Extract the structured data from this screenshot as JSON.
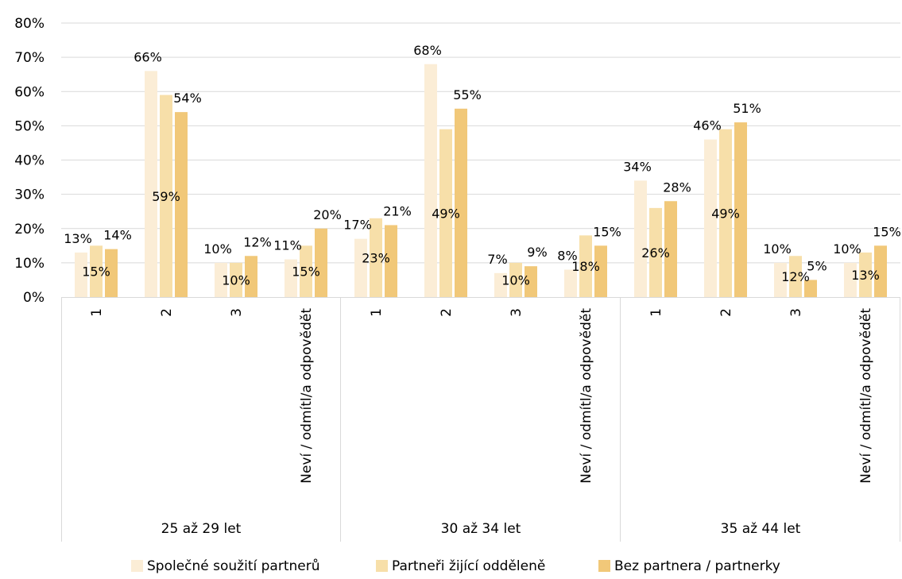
{
  "chart_data": {
    "type": "bar",
    "title": "",
    "xlabel": "",
    "ylabel": "",
    "ylim": [
      0,
      80
    ],
    "y_ticks": [
      "0%",
      "10%",
      "20%",
      "30%",
      "40%",
      "50%",
      "60%",
      "70%",
      "80%"
    ],
    "grid": true,
    "legend_position": "bottom",
    "groups": [
      {
        "label": "25 až 29 let",
        "categories": [
          "1",
          "2",
          "3",
          "Neví / odmítl/a odpovědět"
        ]
      },
      {
        "label": "30 až 34 let",
        "categories": [
          "1",
          "2",
          "3",
          "Neví / odmítl/a odpovědět"
        ]
      },
      {
        "label": "35 až 44 let",
        "categories": [
          "1",
          "2",
          "3",
          "Neví / odmítl/a odpovědět"
        ]
      }
    ],
    "series": [
      {
        "name": "Společné soužití partnerů",
        "color": "#FBEDD6",
        "values": [
          13,
          66,
          10,
          11,
          17,
          68,
          7,
          8,
          34,
          46,
          10,
          10
        ],
        "labels": [
          "13%",
          "66%",
          "10%",
          "11%",
          "17%",
          "68%",
          "7%",
          "8%",
          "34%",
          "46%",
          "10%",
          "10%"
        ]
      },
      {
        "name": "Partneři žijící odděleně",
        "color": "#F7DFA9",
        "values": [
          15,
          59,
          10,
          15,
          23,
          49,
          10,
          18,
          26,
          49,
          12,
          13
        ],
        "labels": [
          "15%",
          "59%",
          "10%",
          "15%",
          "23%",
          "49%",
          "10%",
          "18%",
          "26%",
          "49%",
          "12%",
          "13%"
        ]
      },
      {
        "name": "Bez partnera / partnerky",
        "color": "#F1C879",
        "values": [
          14,
          54,
          12,
          20,
          21,
          55,
          9,
          15,
          28,
          51,
          5,
          15
        ],
        "labels": [
          "14%",
          "54%",
          "12%",
          "20%",
          "21%",
          "55%",
          "9%",
          "15%",
          "28%",
          "51%",
          "5%",
          "15%"
        ]
      }
    ]
  }
}
